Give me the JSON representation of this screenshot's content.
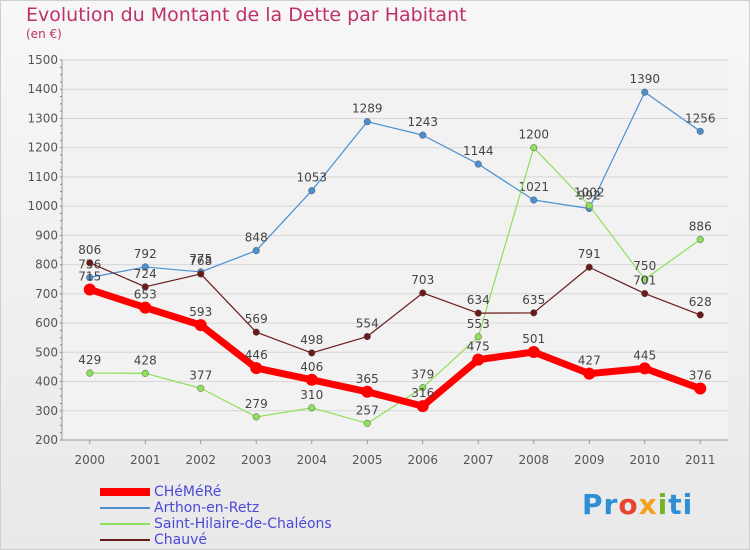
{
  "title": "Evolution du Montant de la Dette par Habitant",
  "unit": "(en €)",
  "logo": [
    "Pr",
    "o",
    "x",
    "i",
    "ti"
  ],
  "chart_data": {
    "type": "line",
    "title": "Evolution du Montant de la Dette par Habitant",
    "ylabel": "(en €)",
    "x": [
      "2000",
      "2001",
      "2002",
      "2003",
      "2004",
      "2005",
      "2006",
      "2007",
      "2008",
      "2009",
      "2010",
      "2011"
    ],
    "ylim": [
      200,
      1500
    ],
    "yticks": [
      200,
      300,
      400,
      500,
      600,
      700,
      800,
      900,
      1000,
      1100,
      1200,
      1300,
      1400,
      1500
    ],
    "grid": true,
    "legend_position": "bottom-left",
    "series": [
      {
        "name": "CHéMéRé",
        "color": "#ff0000",
        "values": [
          715,
          653,
          593,
          446,
          406,
          365,
          316,
          475,
          501,
          427,
          445,
          376
        ]
      },
      {
        "name": "Arthon-en-Retz",
        "color": "#4a90d0",
        "values": [
          756,
          792,
          775,
          848,
          1053,
          1289,
          1243,
          1144,
          1021,
          992,
          1390,
          1256
        ]
      },
      {
        "name": "Saint-Hilaire-de-Chaléons",
        "color": "#8fe05a",
        "values": [
          429,
          428,
          377,
          279,
          310,
          257,
          379,
          553,
          1200,
          1002,
          750,
          886
        ]
      },
      {
        "name": "Chauvé",
        "color": "#6b1a1a",
        "values": [
          806,
          724,
          768,
          569,
          498,
          554,
          703,
          634,
          635,
          791,
          701,
          628
        ]
      }
    ]
  }
}
